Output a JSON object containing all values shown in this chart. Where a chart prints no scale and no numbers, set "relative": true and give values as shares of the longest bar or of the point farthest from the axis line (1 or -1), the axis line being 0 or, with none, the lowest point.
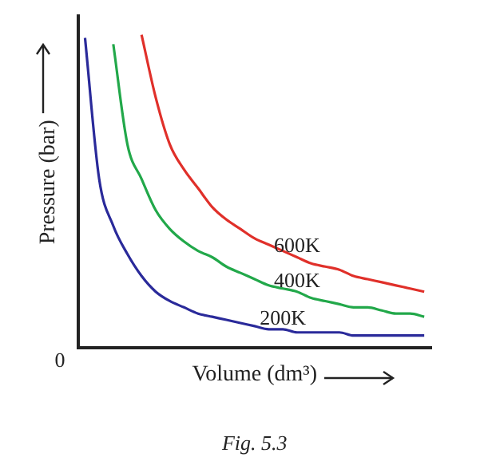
{
  "chart_data": {
    "type": "line",
    "relative": true,
    "xlabel": "Volume (dm³)",
    "ylabel": "Pressure (bar)",
    "annotations": [
      "0",
      "Fig. 5.3"
    ],
    "grid": false,
    "legend": false,
    "marker": "none",
    "line_style": "solid",
    "categories": [
      null,
      null,
      null,
      null,
      null,
      null,
      null,
      null,
      null,
      null,
      null,
      null,
      null,
      null,
      null,
      null,
      null,
      null,
      null,
      null,
      null,
      null,
      null,
      null,
      null
    ],
    "series": [
      {
        "name": "600K",
        "color": "#e0302a",
        "values": [
          null,
          null,
          null,
          null,
          1,
          0.8,
          0.65,
          0.57,
          0.51,
          0.45,
          0.41,
          0.38,
          0.35,
          0.33,
          0.31,
          0.29,
          0.27,
          0.26,
          0.25,
          0.23,
          0.22,
          0.21,
          0.2,
          0.19,
          0.18
        ]
      },
      {
        "name": "400K",
        "color": "#22a84a",
        "values": [
          null,
          null,
          0.97,
          0.65,
          0.54,
          0.44,
          0.38,
          0.34,
          0.31,
          0.29,
          0.26,
          0.24,
          0.22,
          0.2,
          0.19,
          0.18,
          0.16,
          0.15,
          0.14,
          0.13,
          0.13,
          0.12,
          0.11,
          0.11,
          0.1
        ]
      },
      {
        "name": "200K",
        "color": "#2a2a9a",
        "values": [
          0.99,
          0.54,
          0.39,
          0.3,
          0.23,
          0.18,
          0.15,
          0.13,
          0.11,
          0.1,
          0.09,
          0.08,
          0.07,
          0.06,
          0.06,
          0.05,
          0.05,
          0.05,
          0.05,
          0.04,
          0.04,
          0.04,
          0.04,
          0.04,
          0.04
        ]
      }
    ]
  }
}
